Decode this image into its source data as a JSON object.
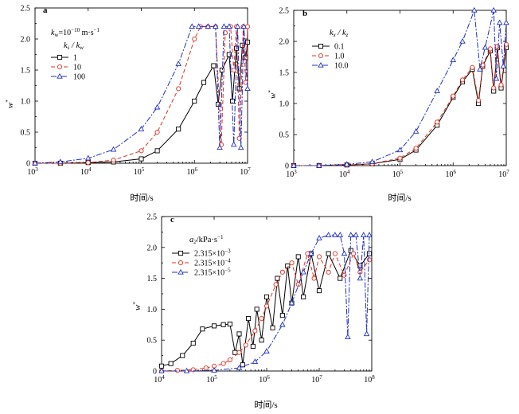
{
  "chart_data": [
    {
      "panel": "a",
      "type": "line",
      "xscale": "log",
      "xlim": [
        1000,
        10000000
      ],
      "ylim": [
        0,
        2.5
      ],
      "yticks": [
        "0",
        "0.5",
        "1.0",
        "1.5",
        "2.0",
        "2.5"
      ],
      "xticks": [
        {
          "base": "10",
          "exp": "3"
        },
        {
          "base": "10",
          "exp": "4"
        },
        {
          "base": "10",
          "exp": "5"
        },
        {
          "base": "10",
          "exp": "6"
        },
        {
          "base": "10",
          "exp": "7"
        }
      ],
      "xlabel": "时间/s",
      "ylabel": {
        "main": "w",
        "sup": "*"
      },
      "legend_header": {
        "main": "k",
        "sub": "w",
        "sup": "−10",
        "text": "=10",
        "unit": " m·s",
        "unit_sup": "−1"
      },
      "legend_title": "k_s / k_w",
      "legend_position": "upper-left",
      "series": [
        {
          "name": "1",
          "color": "#000000",
          "dash": "",
          "marker": "square",
          "x": [
            1000,
            3000,
            10000,
            30000,
            100000,
            200000,
            500000,
            1000000,
            1500000,
            2300000,
            2800000,
            3300000,
            4500000,
            5200000,
            6200000,
            7000000,
            8000000,
            9200000,
            10000000
          ],
          "y": [
            0,
            0,
            0.01,
            0.02,
            0.07,
            0.2,
            0.55,
            1.0,
            1.3,
            1.57,
            0.95,
            1.5,
            1.75,
            1.0,
            1.85,
            1.2,
            1.9,
            1.7,
            1.95
          ]
        },
        {
          "name": "10",
          "color": "#e03020",
          "dash": "5,3",
          "marker": "circle",
          "x": [
            1000,
            3000,
            10000,
            30000,
            100000,
            200000,
            500000,
            1000000,
            1300000,
            1800000,
            2500000,
            3200000,
            3800000,
            4800000,
            5500000,
            6200000,
            7000000,
            8300000,
            9200000,
            10000000
          ],
          "y": [
            0,
            0,
            0.01,
            0.05,
            0.2,
            0.5,
            1.2,
            2.0,
            2.2,
            2.2,
            2.2,
            0.3,
            2.1,
            2.2,
            1.5,
            2.2,
            0.4,
            2.2,
            1.3,
            2.2
          ]
        },
        {
          "name": "100",
          "color": "#2030c0",
          "dash": "7,2,2,2",
          "marker": "triangle",
          "x": [
            1000,
            3000,
            10000,
            30000,
            100000,
            200000,
            500000,
            900000,
            1200000,
            1800000,
            2500000,
            3000000,
            3600000,
            4500000,
            5500000,
            6500000,
            7500000,
            8500000,
            10000000
          ],
          "y": [
            0,
            0.02,
            0.08,
            0.22,
            0.55,
            0.9,
            1.6,
            2.2,
            2.2,
            2.2,
            2.2,
            0.25,
            2.2,
            2.2,
            0.3,
            2.2,
            0.25,
            2.2,
            1.2
          ]
        }
      ]
    },
    {
      "panel": "b",
      "type": "line",
      "xscale": "log",
      "xlim": [
        1000,
        10000000
      ],
      "ylim": [
        0,
        2.5
      ],
      "yticks": [
        "0",
        "0.5",
        "1.0",
        "1.5",
        "2.0",
        "2.5"
      ],
      "xticks": [
        {
          "base": "10",
          "exp": "3"
        },
        {
          "base": "10",
          "exp": "4"
        },
        {
          "base": "10",
          "exp": "5"
        },
        {
          "base": "10",
          "exp": "6"
        },
        {
          "base": "10",
          "exp": "7"
        }
      ],
      "xlabel": "时间/s",
      "ylabel": {
        "main": "w",
        "sup": "*"
      },
      "legend_title": "k_x / k_z",
      "legend_position": "upper-left",
      "series": [
        {
          "name": "0.1",
          "color": "#000000",
          "dash": "",
          "marker": "square",
          "x": [
            1000,
            3000,
            10000,
            30000,
            100000,
            200000,
            500000,
            1000000,
            1500000,
            2300000,
            3000000,
            3600000,
            5000000,
            5800000,
            6800000,
            8000000,
            10000000
          ],
          "y": [
            0,
            0,
            0.01,
            0.03,
            0.1,
            0.25,
            0.65,
            1.1,
            1.35,
            1.55,
            1.0,
            1.6,
            1.85,
            1.2,
            1.9,
            1.25,
            1.9
          ]
        },
        {
          "name": "1.0",
          "color": "#e03020",
          "dash": "5,3",
          "marker": "circle",
          "x": [
            1000,
            3000,
            10000,
            30000,
            100000,
            200000,
            500000,
            1000000,
            1500000,
            2300000,
            3000000,
            3600000,
            5000000,
            5800000,
            6800000,
            8000000,
            10000000
          ],
          "y": [
            0,
            0,
            0.01,
            0.03,
            0.12,
            0.28,
            0.7,
            1.12,
            1.38,
            1.58,
            1.05,
            1.62,
            1.88,
            1.25,
            1.92,
            1.3,
            1.95
          ]
        },
        {
          "name": "10.0",
          "color": "#2030c0",
          "dash": "7,2,2,2",
          "marker": "triangle",
          "x": [
            1000,
            3000,
            10000,
            30000,
            100000,
            200000,
            500000,
            1000000,
            1500000,
            2500000,
            3200000,
            4000000,
            5800000,
            6500000,
            7500000,
            8800000,
            10000000
          ],
          "y": [
            0,
            0,
            0.02,
            0.06,
            0.25,
            0.55,
            1.2,
            1.7,
            2.0,
            2.5,
            1.55,
            1.9,
            2.5,
            1.4,
            2.3,
            1.6,
            2.3
          ]
        }
      ]
    },
    {
      "panel": "c",
      "type": "line",
      "xscale": "log",
      "xlim": [
        10000,
        100000000
      ],
      "ylim": [
        0,
        2.5
      ],
      "yticks": [
        "0",
        "0.5",
        "1.0",
        "1.5",
        "2.0",
        "2.5"
      ],
      "xticks": [
        {
          "base": "10",
          "exp": "4"
        },
        {
          "base": "10",
          "exp": "5"
        },
        {
          "base": "10",
          "exp": "6"
        },
        {
          "base": "10",
          "exp": "7"
        },
        {
          "base": "10",
          "exp": "8"
        }
      ],
      "xlabel": "时间/s",
      "ylabel": {
        "main": "w",
        "sup": "*"
      },
      "legend_title_main": "a",
      "legend_title_sub": "2",
      "legend_title_rest": "/kPa·s",
      "legend_title_sup": "−1",
      "legend_position": "upper-left",
      "series": [
        {
          "name": "2.315×10",
          "name_sup": "−3",
          "color": "#000000",
          "dash": "",
          "marker": "square",
          "x": [
            10000,
            15000,
            25000,
            40000,
            60000,
            100000,
            150000,
            200000,
            250000,
            300000,
            350000,
            450000,
            550000,
            650000,
            800000,
            1000000,
            1300000,
            1600000,
            2000000,
            2500000,
            3000000,
            4000000,
            5000000,
            7000000,
            10000000,
            15000000,
            25000000,
            40000000,
            60000000,
            90000000
          ],
          "y": [
            0.08,
            0.12,
            0.25,
            0.45,
            0.68,
            0.73,
            0.75,
            0.76,
            0.3,
            0.6,
            0.1,
            0.85,
            0.4,
            1.0,
            0.5,
            1.2,
            0.7,
            1.5,
            0.9,
            1.7,
            1.1,
            1.85,
            1.2,
            1.9,
            1.3,
            1.9,
            1.5,
            1.95,
            1.7,
            1.9
          ]
        },
        {
          "name": "2.315×10",
          "name_sup": "−4",
          "color": "#e03020",
          "dash": "5,3",
          "marker": "circle",
          "x": [
            10000,
            20000,
            40000,
            70000,
            100000,
            150000,
            200000,
            300000,
            400000,
            600000,
            800000,
            1000000,
            1500000,
            2000000,
            3000000,
            4000000,
            6000000,
            8000000,
            10000000,
            15000000,
            20000000,
            30000000,
            45000000,
            60000000,
            90000000
          ],
          "y": [
            0,
            0.01,
            0.02,
            0.05,
            0.08,
            0.12,
            0.18,
            0.3,
            0.42,
            0.65,
            0.85,
            1.05,
            1.4,
            1.6,
            1.75,
            1.4,
            1.9,
            1.5,
            1.85,
            1.6,
            1.9,
            1.55,
            1.9,
            1.6,
            1.8
          ]
        },
        {
          "name": "2.315×10",
          "name_sup": "−5",
          "color": "#2030c0",
          "dash": "7,2,2,2",
          "marker": "triangle",
          "x": [
            10000,
            30000,
            100000,
            300000,
            600000,
            1000000,
            2000000,
            3000000,
            5000000,
            7000000,
            10000000,
            15000000,
            20000000,
            25000000,
            30000000,
            35000000,
            40000000,
            50000000,
            60000000,
            70000000,
            80000000,
            90000000
          ],
          "y": [
            0,
            0,
            0.01,
            0.05,
            0.15,
            0.32,
            0.75,
            1.1,
            1.6,
            1.9,
            2.15,
            2.2,
            2.2,
            2.2,
            1.9,
            0.55,
            2.2,
            2.2,
            1.5,
            2.2,
            0.6,
            2.2
          ]
        }
      ]
    }
  ]
}
